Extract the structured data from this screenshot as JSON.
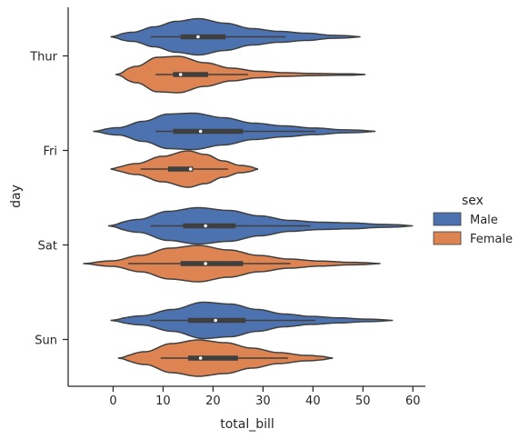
{
  "chart_data": {
    "type": "violin",
    "orientation": "horizontal",
    "title": "",
    "xlabel": "total_bill",
    "ylabel": "day",
    "xlim": [
      -9,
      62.5
    ],
    "x_ticks": [
      0,
      10,
      20,
      30,
      40,
      50,
      60
    ],
    "categories": [
      "Thur",
      "Fri",
      "Sat",
      "Sun"
    ],
    "legend": {
      "title": "sex",
      "position": "center-right",
      "entries": [
        "Male",
        "Female"
      ]
    },
    "colors": {
      "Male": "#4c72b0",
      "Female": "#dd8452",
      "outline": "#3f3f3f"
    },
    "grid": false,
    "series": [
      {
        "name": "Male",
        "color": "#4c72b0",
        "stats": [
          {
            "day": "Thur",
            "min": -0.5,
            "max": 49.5,
            "whisker_low": 7.5,
            "q1": 13.5,
            "median": 17,
            "q3": 22.5,
            "whisker_high": 34.5,
            "peak": 17,
            "kde": [
              0.08,
              0.25,
              0.55,
              0.85,
              1.0,
              0.75,
              0.45,
              0.3,
              0.2,
              0.08,
              0.04
            ]
          },
          {
            "day": "Fri",
            "min": -4,
            "max": 52.5,
            "whisker_low": 8.5,
            "q1": 12,
            "median": 17.5,
            "q3": 26,
            "whisker_high": 40.5,
            "peak": 16,
            "kde": [
              0.05,
              0.2,
              0.55,
              0.95,
              1.0,
              0.75,
              0.45,
              0.3,
              0.18,
              0.08,
              0.04
            ]
          },
          {
            "day": "Sat",
            "min": -1,
            "max": 60,
            "whisker_low": 7.5,
            "q1": 14,
            "median": 18.5,
            "q3": 24.5,
            "whisker_high": 39.5,
            "peak": 17,
            "kde": [
              0.07,
              0.35,
              0.8,
              1.0,
              0.85,
              0.55,
              0.3,
              0.2,
              0.16,
              0.08,
              0.04
            ]
          },
          {
            "day": "Sun",
            "min": -0.5,
            "max": 56,
            "whisker_low": 7.5,
            "q1": 15,
            "median": 20.5,
            "q3": 26.5,
            "whisker_high": 40.5,
            "peak": 18,
            "kde": [
              0.06,
              0.25,
              0.6,
              1.0,
              0.9,
              0.6,
              0.35,
              0.22,
              0.14,
              0.07,
              0.03
            ]
          }
        ]
      },
      {
        "name": "Female",
        "color": "#dd8452",
        "stats": [
          {
            "day": "Thur",
            "min": 0.5,
            "max": 50.5,
            "whisker_low": 8.5,
            "q1": 12,
            "median": 13.5,
            "q3": 19,
            "whisker_high": 27,
            "peak": 13,
            "kde": [
              0.08,
              0.45,
              0.95,
              1.0,
              0.65,
              0.35,
              0.18,
              0.1,
              0.06,
              0.04,
              0.03
            ]
          },
          {
            "day": "Fri",
            "min": -0.5,
            "max": 29,
            "whisker_low": 5.5,
            "q1": 11,
            "median": 15.5,
            "q3": 16,
            "whisker_high": 23,
            "peak": 15,
            "kde": [
              0.05,
              0.3,
              0.7,
              1.0,
              0.8,
              0.45,
              0.2,
              0.08
            ]
          },
          {
            "day": "Sat",
            "min": -6,
            "max": 53.5,
            "whisker_low": 3,
            "q1": 13.5,
            "median": 18.5,
            "q3": 26,
            "whisker_high": 35.5,
            "peak": 17,
            "kde": [
              0.03,
              0.15,
              0.45,
              0.85,
              1.0,
              0.75,
              0.45,
              0.25,
              0.14,
              0.07,
              0.03
            ]
          },
          {
            "day": "Sun",
            "min": 1,
            "max": 44,
            "whisker_low": 9.5,
            "q1": 15,
            "median": 17.5,
            "q3": 25,
            "whisker_high": 35,
            "peak": 17,
            "kde": [
              0.05,
              0.35,
              0.8,
              1.0,
              0.85,
              0.55,
              0.3,
              0.15,
              0.06
            ]
          }
        ]
      }
    ]
  }
}
